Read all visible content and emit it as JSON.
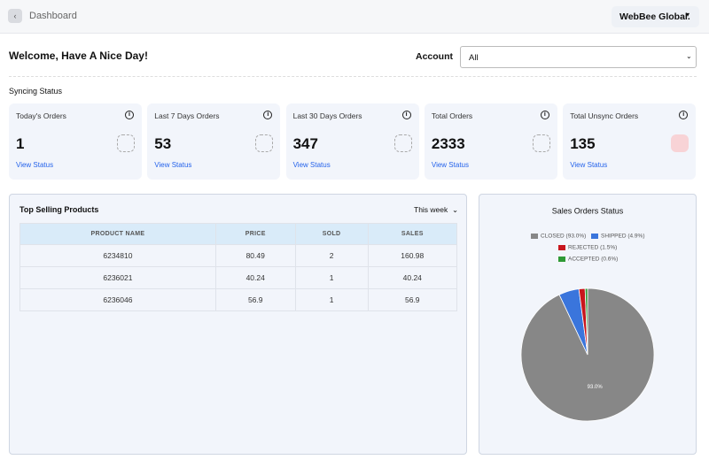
{
  "header": {
    "title": "Dashboard",
    "account_menu": "WebBee Global."
  },
  "welcome": "Welcome, Have A Nice Day!",
  "account_filter": {
    "label": "Account",
    "selected": "All"
  },
  "syncing_status": {
    "title": "Syncing Status",
    "cards": [
      {
        "label": "Today's Orders",
        "value": 1,
        "link": "View Status"
      },
      {
        "label": "Last 7 Days Orders",
        "value": 53,
        "link": "View Status"
      },
      {
        "label": "Last 30 Days Orders",
        "value": 347,
        "link": "View Status"
      },
      {
        "label": "Total Orders",
        "value": 2333,
        "link": "View Status"
      },
      {
        "label": "Total Unsync Orders",
        "value": 135,
        "link": "View Status"
      }
    ]
  },
  "top_products": {
    "title": "Top Selling Products",
    "period": "This week",
    "columns": [
      "PRODUCT NAME",
      "PRICE",
      "SOLD",
      "SALES"
    ],
    "rows": [
      [
        "6234810",
        80.49,
        2,
        160.98
      ],
      [
        "6236021",
        40.24,
        1,
        40.24
      ],
      [
        "6236046",
        56.9,
        1,
        56.9
      ]
    ]
  },
  "chart_data": {
    "type": "pie",
    "title": "Sales Orders Status",
    "categories": [
      "CLOSED (93.0%)",
      "SHIPPED (4.9%)",
      "REJECTED (1.5%)",
      "ACCEPTED (0.6%)"
    ],
    "values": [
      93.0,
      4.9,
      1.5,
      0.6
    ],
    "value_labels": [
      "93.0%",
      null,
      null,
      null
    ],
    "colors": [
      "#878787",
      "#3a75dc",
      "#c8161d",
      "#2f9a35"
    ]
  }
}
